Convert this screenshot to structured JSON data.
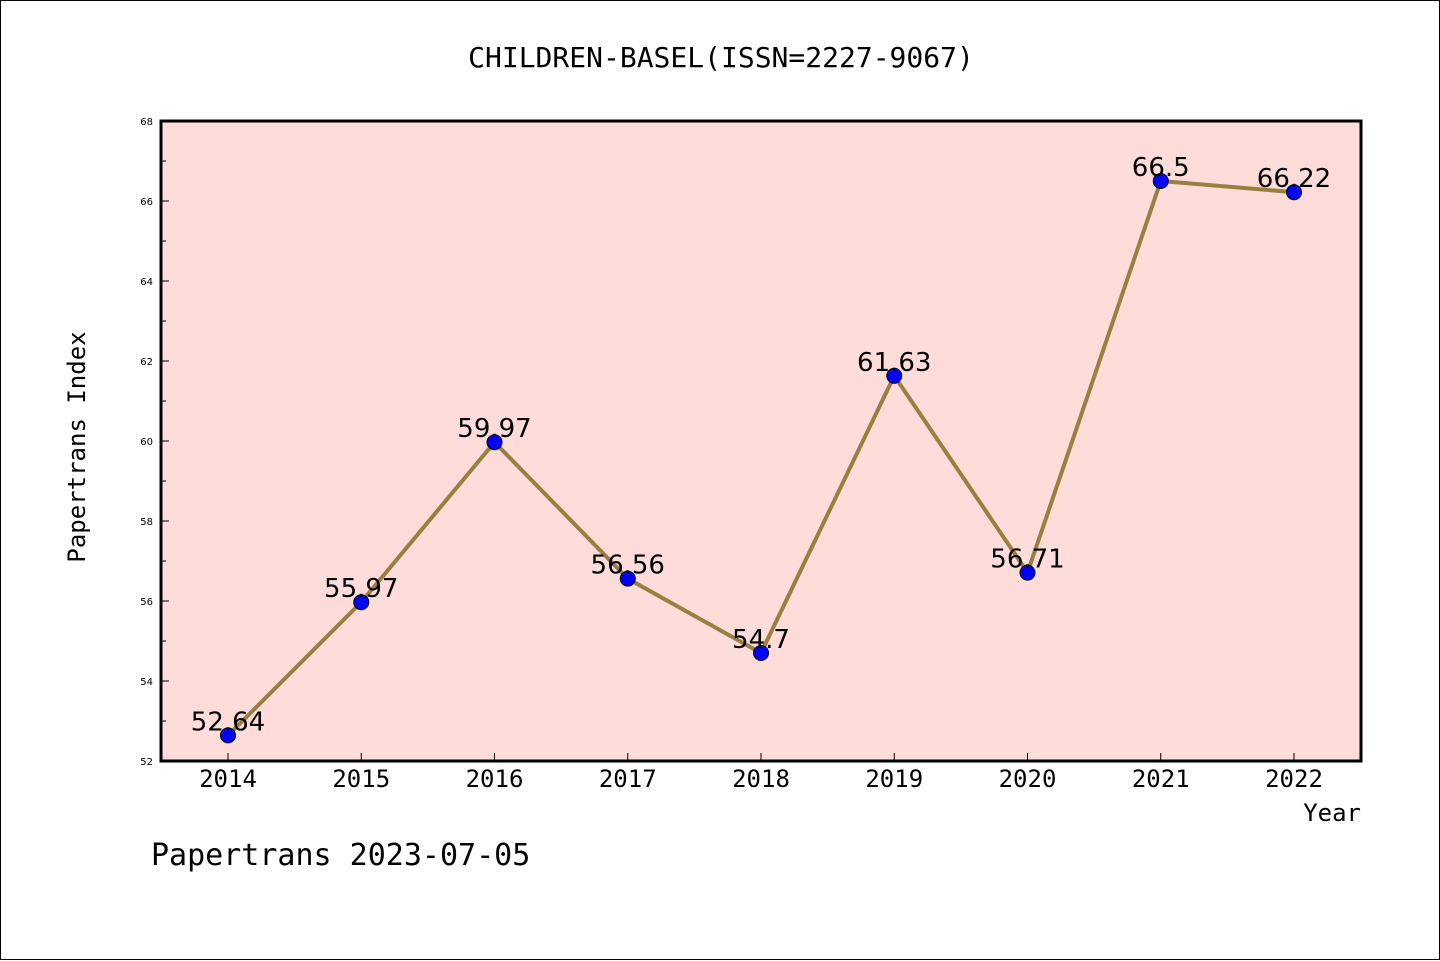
{
  "chart_data": {
    "type": "line",
    "title": "CHILDREN-BASEL(ISSN=2227-9067)",
    "xlabel": "Year",
    "ylabel": "Papertrans Index",
    "categories": [
      "2014",
      "2015",
      "2016",
      "2017",
      "2018",
      "2019",
      "2020",
      "2021",
      "2022"
    ],
    "series": [
      {
        "values": [
          52.64,
          55.97,
          59.97,
          56.56,
          54.7,
          61.63,
          56.71,
          66.5,
          66.22
        ],
        "labels": [
          "52.64",
          "55.97",
          "59.97",
          "56.56",
          "54.7",
          "61.63",
          "56.71",
          "66.5",
          "66.22"
        ]
      }
    ],
    "ylim": [
      52,
      68
    ],
    "yticks": [
      "52",
      "54",
      "56",
      "58",
      "60",
      "62",
      "64",
      "66",
      "68"
    ],
    "grid": false,
    "legend": "none",
    "footer": "Papertrans 2023-07-05",
    "colors": {
      "plot_background": "#FDDCDA",
      "line": "#9A7F3F",
      "marker": "#0000FF",
      "axes": "#000000"
    }
  }
}
